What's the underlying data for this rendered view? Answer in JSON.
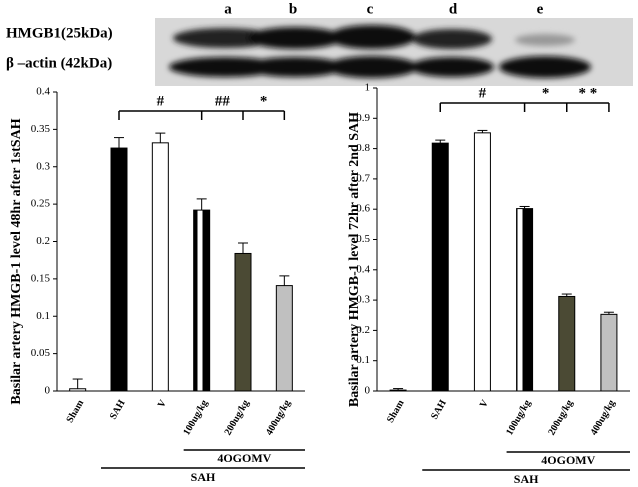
{
  "blot": {
    "rows": [
      "HMGB1(25kDa)",
      "β –actin (42kDa)"
    ],
    "lanes": [
      "a",
      "b",
      "c",
      "d",
      "e"
    ]
  },
  "chart_data": [
    {
      "type": "bar",
      "ylabel": "Basilar artery HMGB-1 level 48hr after 1stSAH",
      "categories": [
        "Sham",
        "SAH",
        "V",
        "100ug/kg",
        "200ug/kg",
        "400ug/kg"
      ],
      "values": [
        0.003,
        0.325,
        0.332,
        0.242,
        0.184,
        0.141
      ],
      "errors": [
        0.013,
        0.014,
        0.013,
        0.015,
        0.014,
        0.013
      ],
      "colors": [
        "#ffffff",
        "#000000",
        "#ffffff",
        "#000000",
        "#4b4a34",
        "#c0c0c0"
      ],
      "hatch": [
        false,
        false,
        false,
        true,
        false,
        false
      ],
      "ylim": [
        0,
        0.4
      ],
      "yticks": [
        0,
        0.05,
        0.1,
        0.15,
        0.2,
        0.25,
        0.3,
        0.35,
        0.4
      ],
      "annotations": [
        "#",
        "##",
        "*"
      ],
      "group_labels": [
        "4OGOMV",
        "SAH"
      ]
    },
    {
      "type": "bar",
      "ylabel": "Basilar artery HMGB-1 level 72hr after 2nd SAH",
      "categories": [
        "Sham",
        "SAH",
        "V",
        "100ug/kg",
        "200ug/kg",
        "400ug/kg"
      ],
      "values": [
        0.003,
        0.818,
        0.852,
        0.602,
        0.312,
        0.253
      ],
      "errors": [
        0.005,
        0.01,
        0.008,
        0.007,
        0.008,
        0.007
      ],
      "colors": [
        "#ffffff",
        "#000000",
        "#ffffff",
        "#000000",
        "#4b4a34",
        "#c0c0c0"
      ],
      "hatch": [
        false,
        false,
        false,
        true,
        false,
        false
      ],
      "ylim": [
        0,
        1
      ],
      "yticks": [
        0,
        0.1,
        0.2,
        0.3,
        0.4,
        0.5,
        0.6,
        0.7,
        0.8,
        0.9,
        1
      ],
      "annotations": [
        "#",
        "*",
        "* *"
      ],
      "group_labels": [
        "4OGOMV",
        "SAH"
      ]
    }
  ]
}
